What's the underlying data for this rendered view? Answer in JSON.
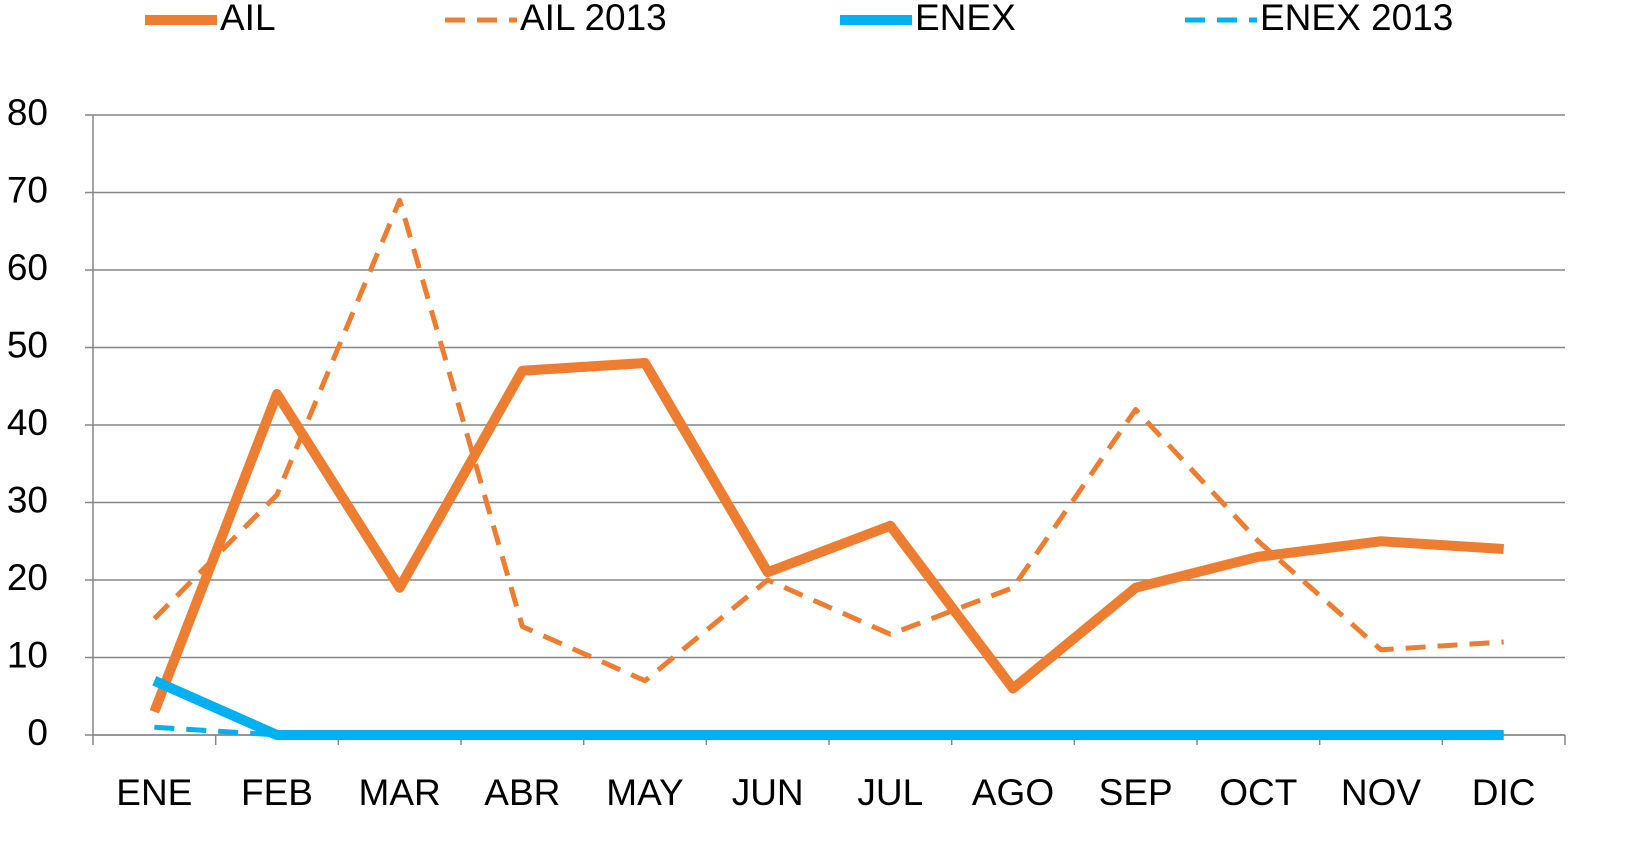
{
  "chart_data": {
    "type": "line",
    "categories": [
      "ENE",
      "FEB",
      "MAR",
      "ABR",
      "MAY",
      "JUN",
      "JUL",
      "AGO",
      "SEP",
      "OCT",
      "NOV",
      "DIC"
    ],
    "series": [
      {
        "name": "AIL",
        "color": "#ED7D31",
        "dashed": false,
        "values": [
          3,
          44,
          19,
          47,
          48,
          21,
          27,
          6,
          19,
          23,
          25,
          24
        ]
      },
      {
        "name": "AIL 2013",
        "color": "#ED7D31",
        "dashed": true,
        "values": [
          15,
          31,
          69,
          14,
          7,
          20,
          13,
          19,
          42,
          25,
          11,
          12
        ]
      },
      {
        "name": "ENEX",
        "color": "#00B0F0",
        "dashed": false,
        "values": [
          7,
          0,
          0,
          0,
          0,
          0,
          0,
          0,
          0,
          0,
          0,
          0
        ]
      },
      {
        "name": "ENEX 2013",
        "color": "#00B0F0",
        "dashed": true,
        "values": [
          1,
          0,
          0,
          0,
          0,
          0,
          0,
          0,
          0,
          0,
          0,
          0
        ]
      }
    ],
    "ylim": [
      0,
      80
    ],
    "yticks": [
      0,
      10,
      20,
      30,
      40,
      50,
      60,
      70,
      80
    ],
    "grid": true,
    "legend": "top"
  }
}
